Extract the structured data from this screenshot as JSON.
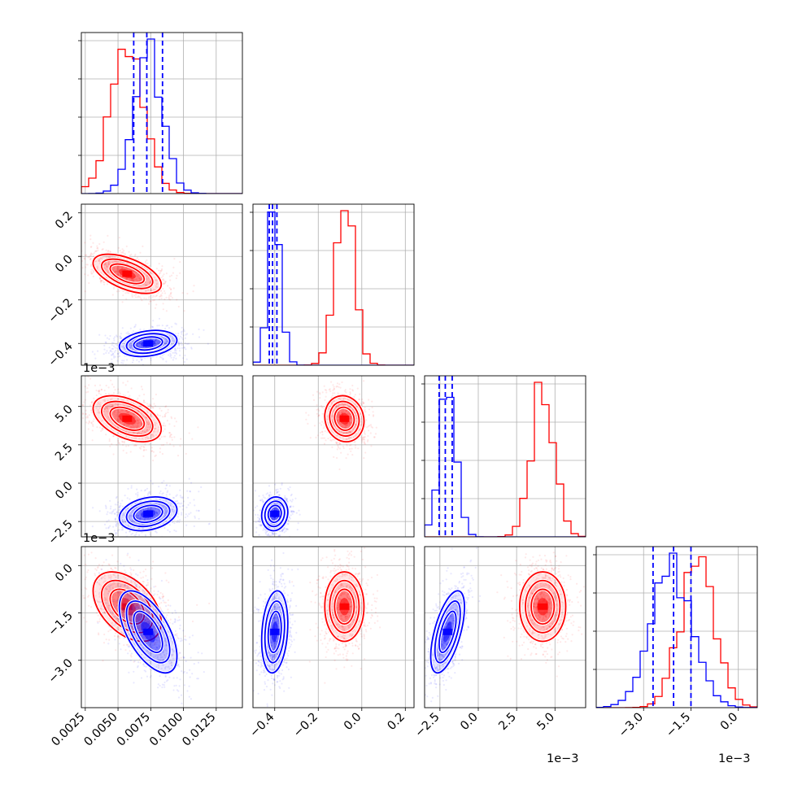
{
  "chart_data": {
    "type": "corner",
    "parameters": 4,
    "colors": {
      "series_a": "#ff0000",
      "series_b": "#0000ff",
      "grid": "#b0b0b0",
      "background": "#ffffff"
    },
    "grid": true,
    "axis_ranges": {
      "p0": [
        0.0022,
        0.0145
      ],
      "p1": [
        -0.5,
        0.24
      ],
      "p2": [
        -3.5,
        7.0
      ],
      "p3": [
        -4.5,
        0.6
      ]
    },
    "offsets": {
      "row1_y": "1e−3",
      "row2_y": "1e−3",
      "col2_x": "1e−3",
      "col3_x": "1e−3"
    },
    "tick_labels": {
      "p0_x": [
        {
          "v": 0.0025,
          "label": "0.0025"
        },
        {
          "v": 0.005,
          "label": "0.0050"
        },
        {
          "v": 0.0075,
          "label": "0.0075"
        },
        {
          "v": 0.01,
          "label": "0.0100"
        },
        {
          "v": 0.0125,
          "label": "0.0125"
        }
      ],
      "p1_x": [
        {
          "v": -0.4,
          "label": "−0.4"
        },
        {
          "v": -0.2,
          "label": "−0.2"
        },
        {
          "v": 0.0,
          "label": "0.0"
        },
        {
          "v": 0.2,
          "label": "0.2"
        }
      ],
      "p2_x": [
        {
          "v": -2.5,
          "label": "−2.5"
        },
        {
          "v": 0.0,
          "label": "0.0"
        },
        {
          "v": 2.5,
          "label": "2.5"
        },
        {
          "v": 5.0,
          "label": "5.0"
        }
      ],
      "p3_x": [
        {
          "v": -3.0,
          "label": "−3.0"
        },
        {
          "v": -1.5,
          "label": "−1.5"
        },
        {
          "v": 0.0,
          "label": "0.0"
        }
      ],
      "p1_y": [
        {
          "v": 0.2,
          "label": "0.2"
        },
        {
          "v": 0.0,
          "label": "0.0"
        },
        {
          "v": -0.2,
          "label": "−0.2"
        },
        {
          "v": -0.4,
          "label": "−0.4"
        }
      ],
      "p2_y": [
        {
          "v": 5.0,
          "label": "5.0"
        },
        {
          "v": 2.5,
          "label": "2.5"
        },
        {
          "v": 0.0,
          "label": "0.0"
        },
        {
          "v": -2.5,
          "label": "−2.5"
        }
      ],
      "p3_y": [
        {
          "v": 0.0,
          "label": "0.0"
        },
        {
          "v": -1.5,
          "label": "−1.5"
        },
        {
          "v": -3.0,
          "label": "−3.0"
        }
      ]
    },
    "series": [
      {
        "color": "#ff0000",
        "means": [
          0.0057,
          -0.08,
          4.2,
          -1.3
        ],
        "stds": [
          0.0013,
          0.045,
          0.75,
          0.55
        ],
        "corr": {
          "0-1": -0.55,
          "0-2": -0.45,
          "0-3": -0.45,
          "1-2": -0.1,
          "1-3": 0.0,
          "2-3": 0.0
        },
        "quantile_lines": false
      },
      {
        "color": "#0000ff",
        "means": [
          0.0073,
          -0.4,
          -2.0,
          -2.1
        ],
        "stds": [
          0.0011,
          0.03,
          0.55,
          0.65
        ],
        "corr": {
          "0-1": 0.25,
          "0-2": 0.25,
          "0-3": -0.6,
          "1-2": 0.1,
          "1-3": 0.2,
          "2-3": 0.6
        },
        "quantiles": [
          [
            0.0062,
            0.0072,
            0.0084
          ],
          [
            -0.425,
            -0.41,
            -0.39
          ],
          [
            -2.55,
            -2.15,
            -1.7
          ],
          [
            -2.7,
            -2.05,
            -1.5
          ]
        ],
        "quantile_lines": true
      }
    ]
  }
}
